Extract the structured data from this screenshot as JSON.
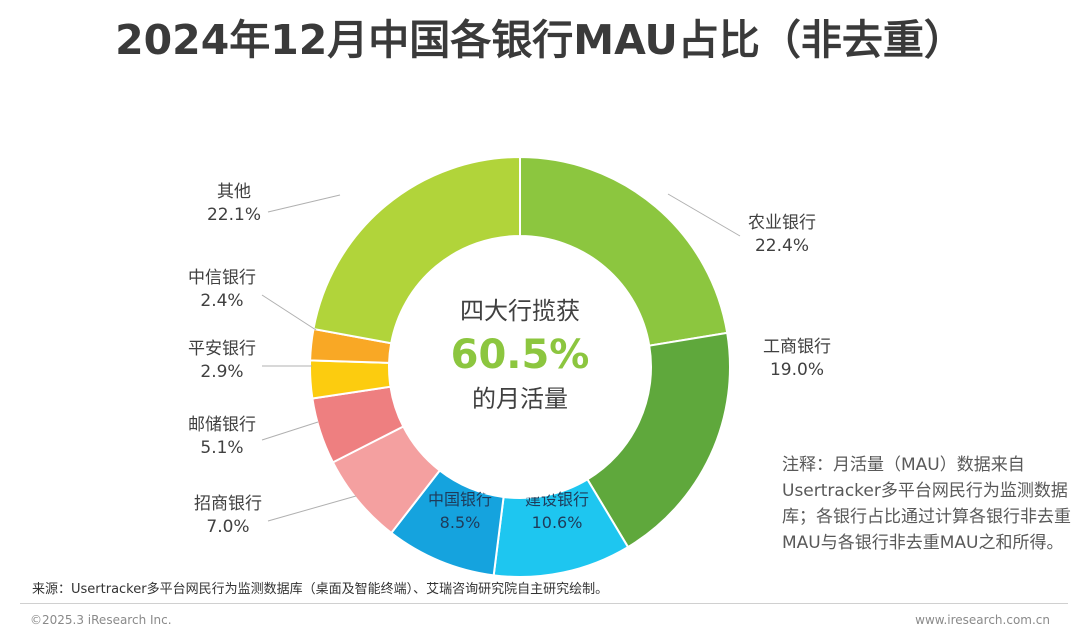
{
  "title": "2024年12月中国各银行MAU占比（非去重）",
  "center": {
    "line1": "四大行揽获",
    "value": "60.5%",
    "line2": "的月活量"
  },
  "note": "注释：月活量（MAU）数据来自Usertracker多平台网民行为监测数据库；各银行占比通过计算各银行非去重MAU与各银行非去重MAU之和所得。",
  "source": "来源：Usertracker多平台网民行为监测数据库（桌面及智能终端）、艾瑞咨询研究院自主研究绘制。",
  "copyright": "©2025.3 iResearch Inc.",
  "site": "www.iresearch.com.cn",
  "chart_data": {
    "type": "pie",
    "variant": "donut",
    "unit": "%",
    "start": "12 o'clock",
    "direction": "clockwise",
    "slices": [
      {
        "name": "农业银行",
        "value": 22.4,
        "label": "22.4%",
        "color": "#8cc63f"
      },
      {
        "name": "工商银行",
        "value": 19.0,
        "label": "19.0%",
        "color": "#5fa83c"
      },
      {
        "name": "建设银行",
        "value": 10.6,
        "label": "10.6%",
        "color": "#1ec6f0"
      },
      {
        "name": "中国银行",
        "value": 8.5,
        "label": "8.5%",
        "color": "#15a3de"
      },
      {
        "name": "招商银行",
        "value": 7.0,
        "label": "7.0%",
        "color": "#f4a0a0"
      },
      {
        "name": "邮储银行",
        "value": 5.1,
        "label": "5.1%",
        "color": "#ee7f80"
      },
      {
        "name": "平安银行",
        "value": 2.9,
        "label": "2.9%",
        "color": "#fccc0f"
      },
      {
        "name": "中信银行",
        "value": 2.4,
        "label": "2.4%",
        "color": "#f9a825"
      },
      {
        "name": "其他",
        "value": 22.1,
        "label": "22.1%",
        "color": "#b1d43a"
      }
    ]
  }
}
